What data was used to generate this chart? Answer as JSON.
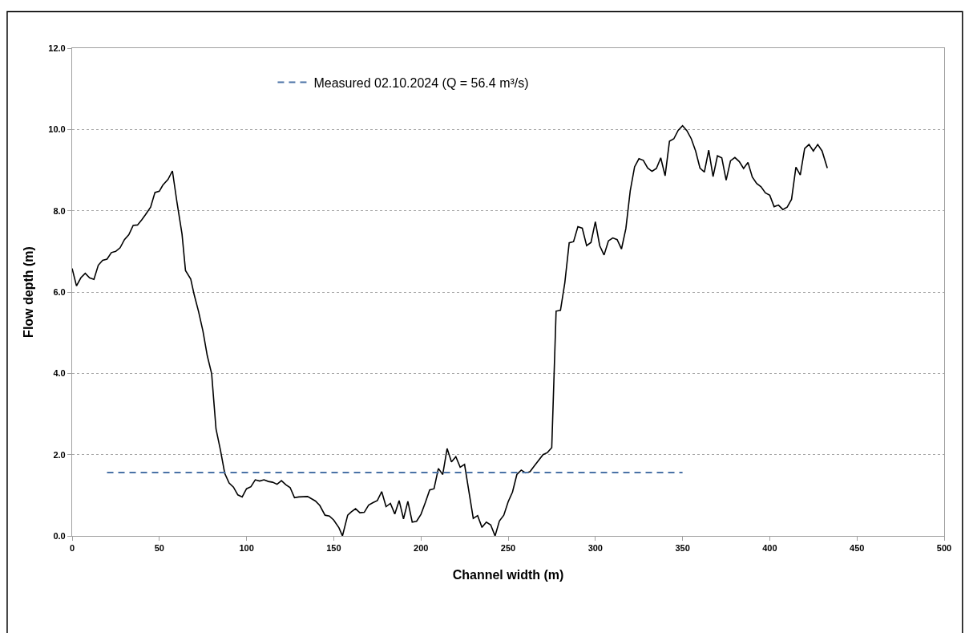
{
  "chart_data": {
    "type": "line",
    "xlabel": "Channel width (m)",
    "ylabel": "Flow depth (m)",
    "xlim": [
      0,
      500
    ],
    "xticks": [
      0,
      50,
      100,
      150,
      200,
      250,
      300,
      350,
      400,
      450,
      500
    ],
    "ylim": [
      0,
      12
    ],
    "yticks": [
      {
        "value": 0,
        "label": "0.0"
      },
      {
        "value": 2,
        "label": "2.0"
      },
      {
        "value": 4,
        "label": "4.0"
      },
      {
        "value": 6,
        "label": "6.0"
      },
      {
        "value": 8,
        "label": "8.0"
      },
      {
        "value": 10,
        "label": "10.0"
      },
      {
        "value": 12,
        "label": "12.0"
      }
    ],
    "grid": "y",
    "legend": "top",
    "marker": "none",
    "series": [
      {
        "color": "#000000",
        "line_style": "solid",
        "x": [
          0,
          2.5,
          5,
          7.5,
          10,
          12.5,
          15,
          17.5,
          20,
          22.5,
          25,
          27.5,
          30,
          32.5,
          35,
          37.5,
          40,
          42,
          45,
          47.5,
          50,
          52,
          55,
          57.5,
          60,
          63,
          65,
          68,
          70,
          72.5,
          75,
          77.5,
          80,
          82.5,
          85,
          87.5,
          90,
          92.5,
          95,
          97.5,
          100,
          102.5,
          105,
          107.5,
          110,
          112.5,
          115,
          117.5,
          120,
          122.5,
          125,
          127.5,
          130,
          135,
          139.5,
          142,
          145,
          147.5,
          150,
          153,
          155,
          158,
          160,
          162.5,
          165,
          167.5,
          170,
          172.5,
          175,
          177.5,
          180,
          182.5,
          185,
          187.5,
          190,
          192.5,
          195,
          197.5,
          200,
          202.5,
          205,
          207.5,
          210,
          212.5,
          215,
          217.5,
          220,
          222.5,
          225,
          230,
          232.5,
          235,
          237.5,
          240,
          242.5,
          245,
          247.5,
          250,
          252.5,
          255,
          257.5,
          260,
          262.5,
          265,
          270,
          272.5,
          275,
          277.5,
          280,
          282.5,
          285,
          287.5,
          290,
          292.5,
          295,
          297.5,
          300,
          302.5,
          305,
          307.5,
          310,
          312.5,
          315,
          317.5,
          320,
          322.5,
          325,
          327.5,
          330,
          332.5,
          335,
          337.5,
          340,
          342.5,
          345,
          347.5,
          350,
          352.5,
          355,
          357.5,
          360,
          362.5,
          365,
          367.5,
          370,
          372.5,
          375,
          377.5,
          380,
          382.5,
          385,
          387.5,
          390,
          392.5,
          395,
          397.5,
          400,
          402.5,
          405,
          407.5,
          410,
          412.5,
          415,
          417.5,
          420,
          422.5,
          425,
          427.5,
          430,
          433
        ],
        "values": [
          6.58,
          6.15,
          6.35,
          6.46,
          6.35,
          6.31,
          6.66,
          6.78,
          6.81,
          6.97,
          7.0,
          7.09,
          7.29,
          7.41,
          7.64,
          7.65,
          7.78,
          7.9,
          8.09,
          8.45,
          8.48,
          8.63,
          8.77,
          8.98,
          8.24,
          7.43,
          6.53,
          6.32,
          5.93,
          5.52,
          5.04,
          4.43,
          3.99,
          2.63,
          2.12,
          1.54,
          1.3,
          1.2,
          1.01,
          0.96,
          1.16,
          1.21,
          1.38,
          1.35,
          1.38,
          1.34,
          1.32,
          1.27,
          1.36,
          1.26,
          1.19,
          0.94,
          0.96,
          0.97,
          0.86,
          0.75,
          0.51,
          0.49,
          0.39,
          0.2,
          0.0,
          0.51,
          0.59,
          0.67,
          0.57,
          0.58,
          0.76,
          0.82,
          0.87,
          1.09,
          0.72,
          0.8,
          0.54,
          0.87,
          0.42,
          0.85,
          0.34,
          0.36,
          0.53,
          0.82,
          1.13,
          1.16,
          1.66,
          1.51,
          2.15,
          1.82,
          1.95,
          1.69,
          1.76,
          0.43,
          0.5,
          0.21,
          0.34,
          0.27,
          0.0,
          0.37,
          0.51,
          0.84,
          1.08,
          1.51,
          1.62,
          1.55,
          1.58,
          1.72,
          2.0,
          2.05,
          2.17,
          5.53,
          5.55,
          6.23,
          7.21,
          7.24,
          7.61,
          7.57,
          7.14,
          7.22,
          7.73,
          7.14,
          6.91,
          7.26,
          7.33,
          7.29,
          7.06,
          7.56,
          8.49,
          9.08,
          9.28,
          9.24,
          9.05,
          8.97,
          9.04,
          9.3,
          8.86,
          9.71,
          9.77,
          9.98,
          10.09,
          9.97,
          9.77,
          9.47,
          9.05,
          8.95,
          9.49,
          8.84,
          9.35,
          9.3,
          8.75,
          9.23,
          9.31,
          9.21,
          9.04,
          9.19,
          8.83,
          8.67,
          8.59,
          8.44,
          8.38,
          8.1,
          8.14,
          8.03,
          8.09,
          8.28,
          9.07,
          8.88,
          9.53,
          9.63,
          9.47,
          9.63,
          9.47,
          9.05
        ]
      },
      {
        "name": "Measured 02.10.2024 (Q = 56.4 m³/s)",
        "color": "#4a72a6",
        "line_style": "dashed",
        "x": [
          20,
          350
        ],
        "values": [
          1.56,
          1.56
        ]
      }
    ]
  }
}
